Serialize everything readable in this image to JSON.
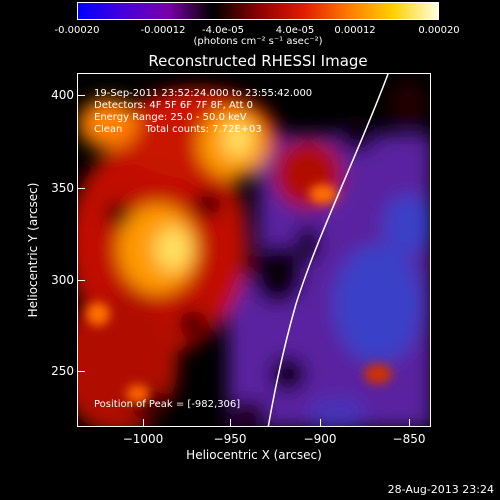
{
  "colorbar": {
    "ticks": [
      "-0.00020",
      "-0.00012",
      "-4.0e-05",
      "4.0e-05",
      "0.00012",
      "0.00020"
    ],
    "units": "(photons cm⁻² s⁻¹ asec⁻²)",
    "colors": [
      "#0000ff",
      "#4400dd",
      "#7a00a8",
      "#000000",
      "#8a0000",
      "#e01a00",
      "#ff7a00",
      "#ffd000",
      "#ffffe0"
    ]
  },
  "title": "Reconstructed RHESSI Image",
  "info": {
    "line1": "19-Sep-2011 23:52:24.000 to 23:55:42.000",
    "line2": "Detectors: 4F 5F 6F 7F 8F, Att 0",
    "line3": "Energy Range: 25.0 - 50.0 keV",
    "line4_method": "Clean",
    "line4_counts": "Total counts: 7.72E+03",
    "peak": "Position of Peak = [-982,306]"
  },
  "axes": {
    "x_label": "Heliocentric X (arcsec)",
    "y_label": "Heliocentric Y (arcsec)",
    "x_ticks": [
      "−1000",
      "−950",
      "−900",
      "−850"
    ],
    "y_ticks": [
      "400",
      "350",
      "300",
      "250"
    ]
  },
  "footer": "28-Aug-2013 23:24"
}
